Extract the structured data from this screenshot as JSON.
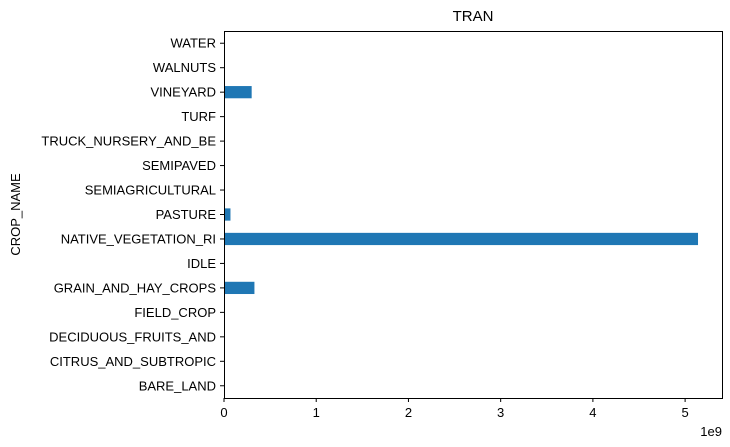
{
  "chart_data": {
    "type": "bar",
    "orientation": "horizontal",
    "title": "TRAN",
    "xlabel": "",
    "ylabel": "CROP_NAME",
    "x_scale_note": "1e9",
    "xlim": [
      0,
      5.4
    ],
    "xticks": [
      "0",
      "1",
      "2",
      "3",
      "4",
      "5"
    ],
    "grid": false,
    "bar_color": "#1f77b4",
    "categories": [
      "BARE_LAND",
      "CITRUS_AND_SUBTROPIC",
      "DECIDUOUS_FRUITS_AND",
      "FIELD_CROP",
      "GRAIN_AND_HAY_CROPS",
      "IDLE",
      "NATIVE_VEGETATION_RI",
      "PASTURE",
      "SEMIAGRICULTURAL",
      "SEMIPAVED",
      "TRUCK_NURSERY_AND_BE",
      "TURF",
      "VINEYARD",
      "WALNUTS",
      "WATER"
    ],
    "values": [
      0,
      0,
      0,
      0,
      0.33,
      0,
      5.14,
      0.07,
      0,
      0,
      0,
      0,
      0.3,
      0,
      0
    ]
  }
}
